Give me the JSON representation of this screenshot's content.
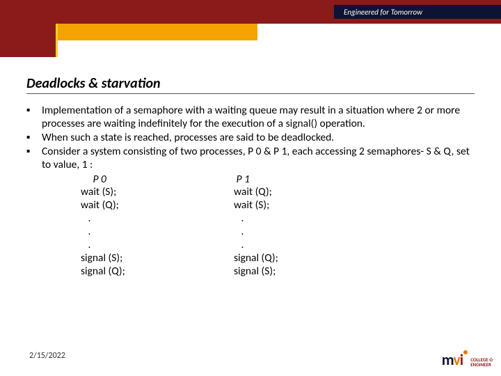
{
  "header": {
    "tagline": "Engineered for Tomorrow",
    "colors": {
      "band": "#8b1a1a",
      "tagline_bg": "#0d1333",
      "yellow": "#f4a300"
    }
  },
  "title": "Deadlocks & starvation",
  "bullets": [
    "Implementation of a semaphore with a waiting queue may result in a situation where 2 or more processes are waiting indefinitely for the execution of a signal() operation.",
    "When such a state is reached, processes are said to be deadlocked.",
    "Consider a system consisting of two processes, P 0 & P 1, each accessing 2 semaphores- S & Q, set to value, 1 :"
  ],
  "columns": {
    "left": {
      "head": "P 0",
      "lines": [
        "wait (S);",
        "wait (Q);",
        "   .",
        "   .",
        "   .",
        "signal (S);",
        "signal (Q);"
      ]
    },
    "right": {
      "head": "P 1",
      "lines": [
        "wait (Q);",
        "wait (S);",
        "   .",
        "   .",
        "   .",
        "signal (Q);",
        "signal (S);"
      ]
    }
  },
  "footer": {
    "date": "2/15/2022",
    "logo": {
      "text1": "COLLEGE O",
      "text2": "ENGINEER"
    }
  }
}
